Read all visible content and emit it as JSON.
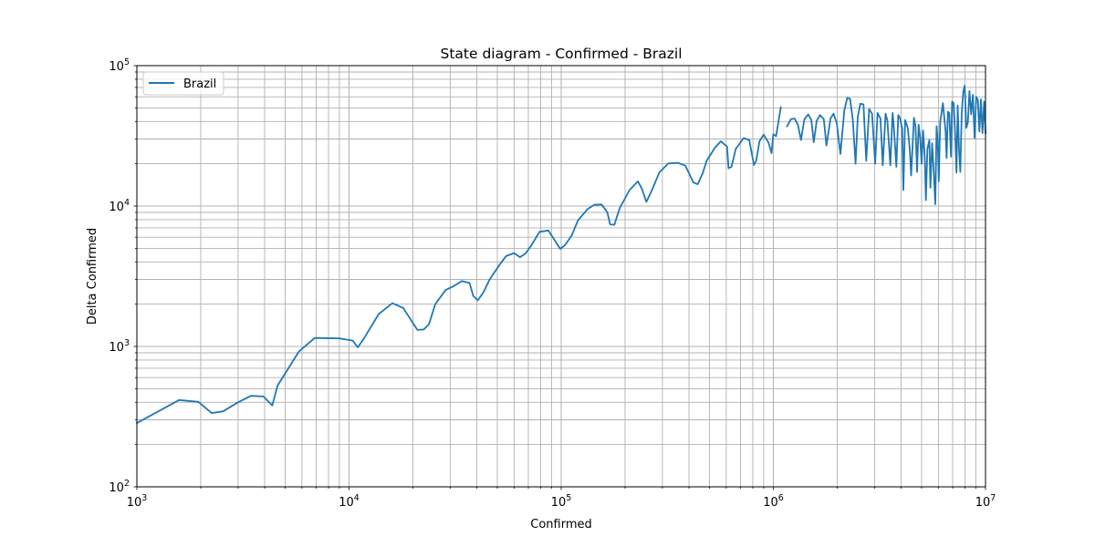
{
  "chart_data": {
    "type": "line",
    "title": "State diagram - Confirmed - Brazil",
    "xlabel": "Confirmed",
    "ylabel": "Delta Confirmed",
    "xscale": "log",
    "yscale": "log",
    "xlim": [
      1000,
      10000000
    ],
    "ylim": [
      100,
      100000
    ],
    "grid": "major and minor",
    "legend_position": "top-left",
    "x_ticks": [
      {
        "base": "10",
        "exp": "3"
      },
      {
        "base": "10",
        "exp": "4"
      },
      {
        "base": "10",
        "exp": "5"
      },
      {
        "base": "10",
        "exp": "6"
      },
      {
        "base": "10",
        "exp": "7"
      }
    ],
    "y_ticks": [
      {
        "base": "10",
        "exp": "2"
      },
      {
        "base": "10",
        "exp": "3"
      },
      {
        "base": "10",
        "exp": "4"
      },
      {
        "base": "10",
        "exp": "5"
      }
    ],
    "series": [
      {
        "name": "Brazil",
        "color": "#1f77b4",
        "points": [
          [
            1000,
            285
          ],
          [
            1580,
            415
          ],
          [
            1950,
            403
          ],
          [
            2250,
            335
          ],
          [
            2550,
            345
          ],
          [
            3000,
            400
          ],
          [
            3450,
            445
          ],
          [
            3950,
            440
          ],
          [
            4350,
            380
          ],
          [
            4600,
            525
          ],
          [
            5800,
            920
          ],
          [
            6900,
            1150
          ],
          [
            9000,
            1140
          ],
          [
            10400,
            1100
          ],
          [
            11000,
            985
          ],
          [
            11800,
            1150
          ],
          [
            13800,
            1700
          ],
          [
            16000,
            2030
          ],
          [
            18000,
            1880
          ],
          [
            21000,
            1310
          ],
          [
            22500,
            1320
          ],
          [
            23800,
            1440
          ],
          [
            25500,
            2000
          ],
          [
            28500,
            2520
          ],
          [
            31000,
            2680
          ],
          [
            34000,
            2920
          ],
          [
            37000,
            2830
          ],
          [
            38500,
            2290
          ],
          [
            40500,
            2130
          ],
          [
            43000,
            2430
          ],
          [
            46000,
            3000
          ],
          [
            51000,
            3780
          ],
          [
            55000,
            4400
          ],
          [
            60000,
            4620
          ],
          [
            64000,
            4320
          ],
          [
            68000,
            4600
          ],
          [
            73000,
            5350
          ],
          [
            79000,
            6550
          ],
          [
            87000,
            6700
          ],
          [
            99000,
            4950
          ],
          [
            104000,
            5250
          ],
          [
            112000,
            6150
          ],
          [
            120000,
            7900
          ],
          [
            133000,
            9500
          ],
          [
            143000,
            10200
          ],
          [
            155000,
            10250
          ],
          [
            165000,
            9000
          ],
          [
            170000,
            7400
          ],
          [
            178000,
            7350
          ],
          [
            189000,
            9700
          ],
          [
            210000,
            13000
          ],
          [
            230000,
            15000
          ],
          [
            240000,
            13300
          ],
          [
            252000,
            10700
          ],
          [
            268000,
            13000
          ],
          [
            290000,
            17300
          ],
          [
            320000,
            20100
          ],
          [
            355000,
            20300
          ],
          [
            385000,
            19400
          ],
          [
            420000,
            14700
          ],
          [
            440000,
            14300
          ],
          [
            465000,
            17200
          ],
          [
            485000,
            21000
          ],
          [
            530000,
            26000
          ],
          [
            565000,
            28900
          ],
          [
            605000,
            26500
          ],
          [
            615000,
            18600
          ],
          [
            635000,
            19000
          ],
          [
            665000,
            25500
          ],
          [
            725000,
            30500
          ],
          [
            770000,
            29500
          ],
          [
            810000,
            19600
          ],
          [
            830000,
            21000
          ],
          [
            860000,
            28900
          ],
          [
            900000,
            32300
          ],
          [
            950000,
            28200
          ],
          [
            980000,
            23800
          ],
          [
            1000000,
            32500
          ],
          [
            1030000,
            31500
          ],
          [
            1060000,
            41000
          ],
          [
            1085000,
            50500
          ],
          null,
          [
            1160000,
            37000
          ],
          [
            1210000,
            41500
          ],
          [
            1260000,
            42000
          ],
          [
            1305000,
            38000
          ],
          [
            1350000,
            29500
          ],
          [
            1400000,
            41500
          ],
          [
            1460000,
            45000
          ],
          [
            1510000,
            41000
          ],
          [
            1550000,
            28500
          ],
          [
            1600000,
            40500
          ],
          [
            1660000,
            44500
          ],
          [
            1730000,
            41500
          ],
          [
            1780000,
            27000
          ],
          [
            1860000,
            42000
          ],
          [
            1920000,
            45500
          ],
          [
            1990000,
            39000
          ],
          [
            2070000,
            23500
          ],
          [
            2160000,
            48000
          ],
          [
            2230000,
            59000
          ],
          [
            2300000,
            58000
          ],
          [
            2370000,
            41000
          ],
          [
            2440000,
            20000
          ],
          [
            2500000,
            43000
          ],
          [
            2570000,
            53500
          ],
          [
            2660000,
            53000
          ],
          [
            2740000,
            21000
          ],
          [
            2830000,
            49000
          ],
          [
            2920000,
            45500
          ],
          [
            3020000,
            20000
          ],
          [
            3100000,
            46000
          ],
          [
            3200000,
            42000
          ],
          [
            3280000,
            19500
          ],
          [
            3380000,
            45500
          ],
          [
            3450000,
            40500
          ],
          [
            3560000,
            19500
          ],
          [
            3650000,
            46000
          ],
          [
            3700000,
            36000
          ],
          [
            3800000,
            19000
          ],
          [
            3880000,
            44500
          ],
          [
            3950000,
            42500
          ],
          [
            4050000,
            35500
          ],
          [
            4100000,
            13000
          ],
          [
            4180000,
            41000
          ],
          [
            4300000,
            36000
          ],
          [
            4400000,
            25000
          ],
          [
            4460000,
            16500
          ],
          [
            4600000,
            42500
          ],
          [
            4680000,
            37000
          ],
          [
            4760000,
            17500
          ],
          [
            4840000,
            38000
          ],
          [
            4920000,
            30500
          ],
          [
            5000000,
            20000
          ],
          [
            5080000,
            34500
          ],
          [
            5170000,
            22500
          ],
          [
            5240000,
            11000
          ],
          [
            5320000,
            25500
          ],
          [
            5440000,
            29500
          ],
          [
            5500000,
            13500
          ],
          [
            5600000,
            28000
          ],
          [
            5700000,
            18000
          ],
          [
            5800000,
            10300
          ],
          [
            5880000,
            37000
          ],
          [
            5960000,
            28500
          ],
          [
            6020000,
            15000
          ],
          [
            6120000,
            40000
          ],
          [
            6300000,
            54000
          ],
          [
            6480000,
            34500
          ],
          [
            6560000,
            22000
          ],
          [
            6650000,
            47000
          ],
          [
            6750000,
            46000
          ],
          [
            6880000,
            22500
          ],
          [
            6960000,
            55500
          ],
          [
            7080000,
            54000
          ],
          [
            7200000,
            32000
          ],
          [
            7300000,
            17300
          ],
          [
            7390000,
            52000
          ],
          [
            7500000,
            25000
          ],
          [
            7610000,
            17500
          ],
          [
            7720000,
            45000
          ],
          [
            7850000,
            65000
          ],
          [
            7980000,
            72000
          ],
          [
            8120000,
            36000
          ],
          [
            8260000,
            39500
          ],
          [
            8400000,
            66000
          ],
          [
            8560000,
            45000
          ],
          [
            8720000,
            62000
          ],
          [
            8880000,
            30500
          ],
          [
            9040000,
            60000
          ],
          [
            9200000,
            57000
          ],
          [
            9360000,
            34000
          ],
          [
            9520000,
            57500
          ],
          [
            9680000,
            33000
          ],
          [
            9850000,
            55500
          ],
          [
            10000000,
            33000
          ]
        ]
      }
    ]
  }
}
